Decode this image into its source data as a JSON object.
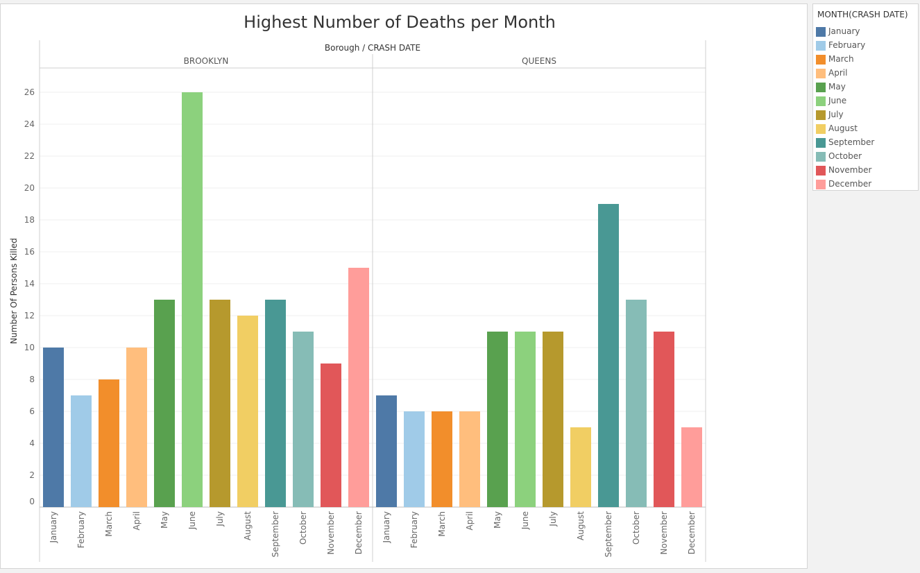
{
  "chart_data": {
    "type": "bar",
    "title": "Highest Number of Deaths per Month",
    "column_header": "Borough / CRASH DATE",
    "ylabel": "Number Of Persons Killed",
    "ylim": [
      0,
      27
    ],
    "yticks": [
      0,
      2,
      4,
      6,
      8,
      10,
      12,
      14,
      16,
      18,
      20,
      22,
      24,
      26
    ],
    "grid": true,
    "legend_position": "right",
    "legend_title": "MONTH(CRASH DATE)",
    "categories": [
      "January",
      "February",
      "March",
      "April",
      "May",
      "June",
      "July",
      "August",
      "September",
      "October",
      "November",
      "December"
    ],
    "colors": [
      "#4e79a7",
      "#a0cbe8",
      "#f28e2b",
      "#ffbe7d",
      "#59a14f",
      "#8cd17d",
      "#b6992d",
      "#f1ce63",
      "#499894",
      "#86bcb6",
      "#e15759",
      "#ff9d9a"
    ],
    "panels": [
      {
        "name": "BROOKLYN",
        "values": [
          10,
          7,
          8,
          10,
          13,
          26,
          13,
          12,
          13,
          11,
          9,
          15
        ]
      },
      {
        "name": "QUEENS",
        "values": [
          7,
          6,
          6,
          6,
          11,
          11,
          11,
          5,
          19,
          13,
          11,
          5
        ]
      }
    ]
  }
}
